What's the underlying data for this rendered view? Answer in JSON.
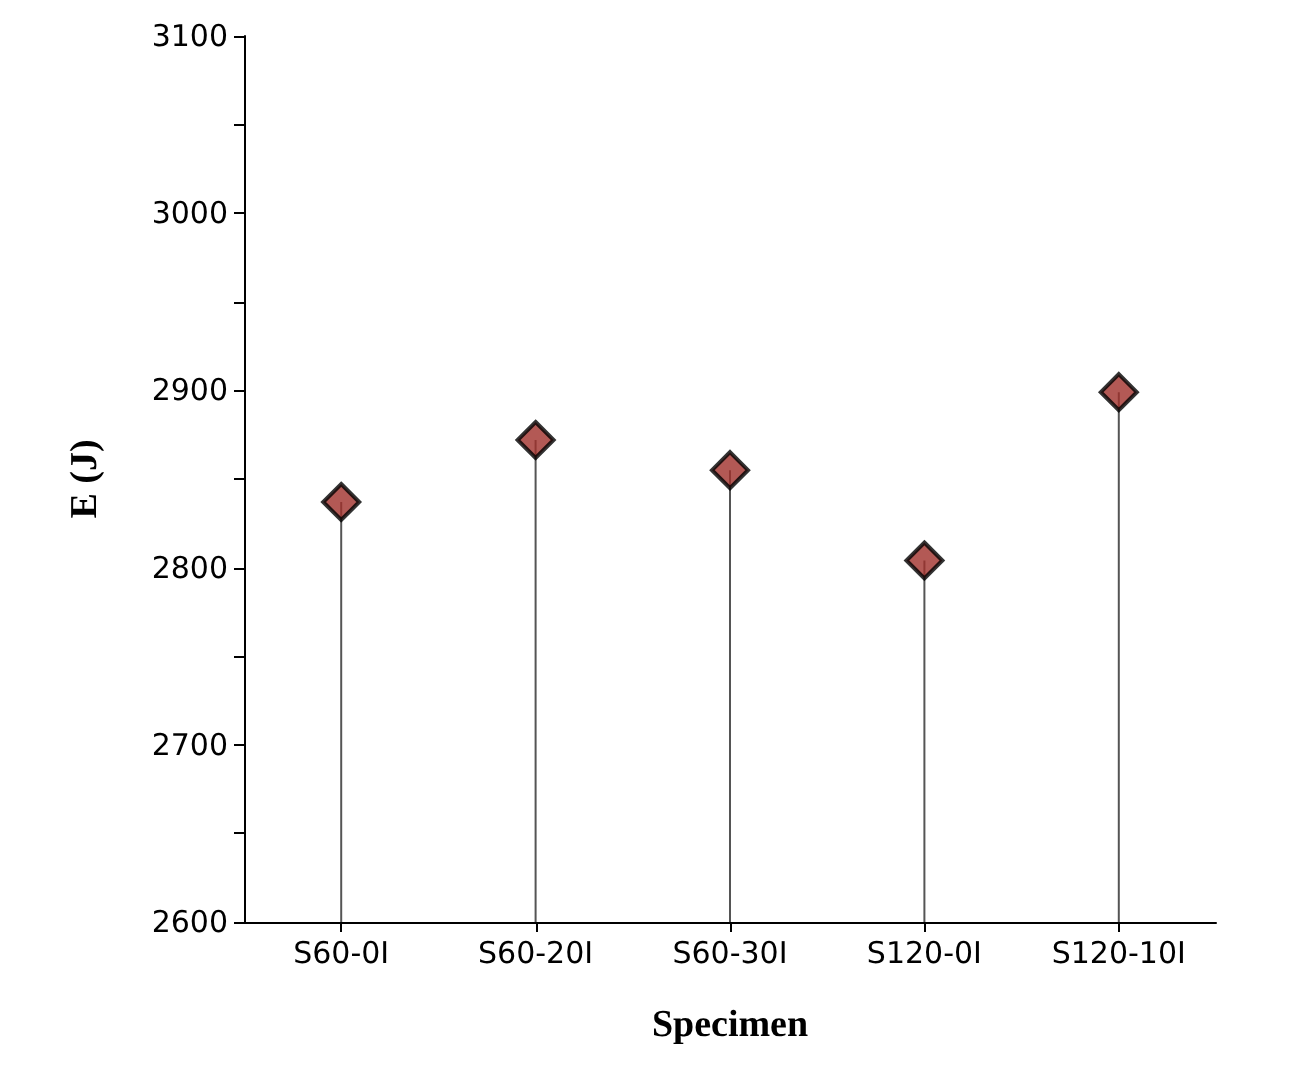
{
  "chart_data": {
    "type": "lollipop",
    "xlabel": "Specimen",
    "ylabel": "E (J)",
    "categories": [
      "S60-0I",
      "S60-20I",
      "S60-30I",
      "S120-0I",
      "S120-10I"
    ],
    "values": [
      2837,
      2872,
      2855,
      2804,
      2899
    ],
    "color": "#a0302a",
    "marker": "diamond",
    "ylim": [
      2600,
      3100
    ],
    "yticks": [
      2600,
      {
        "value": 2650,
        "label": null
      },
      2700,
      {
        "value": 2750,
        "label": null
      },
      2800,
      {
        "value": 2850,
        "label": null
      },
      2900,
      {
        "value": 2950,
        "label": null
      },
      3000,
      {
        "value": 3050,
        "label": null
      },
      3100
    ],
    "grid": false
  }
}
